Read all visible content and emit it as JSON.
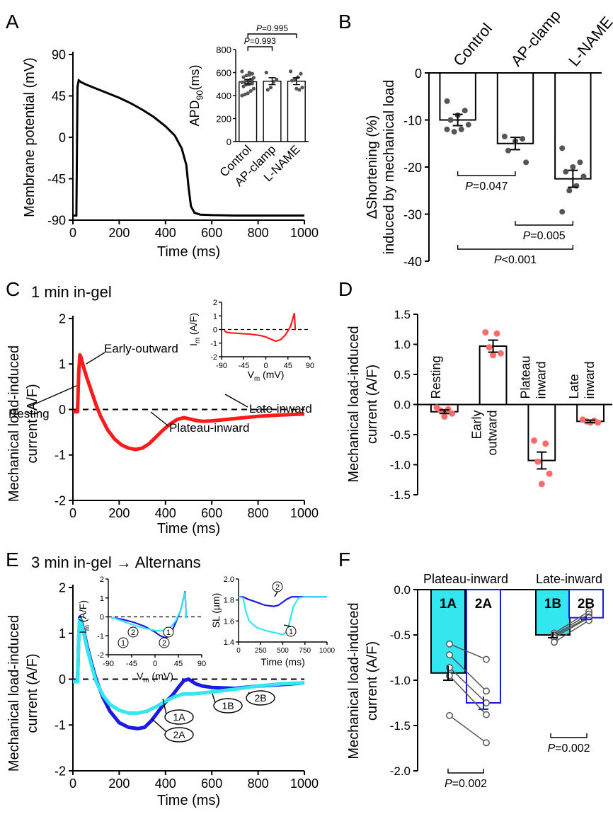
{
  "colors": {
    "black": "#000000",
    "red": "#ff1a1a",
    "lightred": "#ff6b6b",
    "cyan": "#33e6f0",
    "blue": "#1a1ae6",
    "grey": "#555555"
  },
  "panels": {
    "A": {
      "label": "A"
    },
    "B": {
      "label": "B"
    },
    "C": {
      "label": "C",
      "title": "1 min in-gel"
    },
    "D": {
      "label": "D"
    },
    "E": {
      "label": "E",
      "title": "3 min in-gel → Alternans"
    },
    "F": {
      "label": "F"
    }
  },
  "chart_data": [
    {
      "panel": "A",
      "type": "line",
      "xlabel": "Time (ms)",
      "ylabel": "Membrane potential (mV)",
      "xlim": [
        0,
        1000
      ],
      "ylim": [
        -90,
        90
      ],
      "xticks": [
        0,
        200,
        400,
        600,
        800,
        1000
      ],
      "yticks": [
        -90,
        -45,
        0,
        45,
        90
      ],
      "series": [
        {
          "x": [
            0,
            15,
            20,
            25,
            35,
            60,
            100,
            150,
            200,
            250,
            300,
            350,
            400,
            440,
            470,
            490,
            500,
            510,
            525,
            550,
            600,
            700,
            1000
          ],
          "y": [
            -85,
            -85,
            55,
            62,
            60,
            57,
            53,
            48,
            43,
            37,
            30,
            22,
            12,
            2,
            -12,
            -30,
            -55,
            -75,
            -82,
            -84,
            -84.5,
            -85,
            -85
          ]
        }
      ]
    },
    {
      "panel": "A-inset",
      "type": "bar",
      "ylabel": "APD",
      "ylabel_sub": "90",
      "ylabel_unit": "(ms)",
      "categories": [
        "Control",
        "AP-clamp",
        "L-NAME"
      ],
      "values": [
        520,
        525,
        525
      ],
      "errors": [
        20,
        30,
        30
      ],
      "ylim": [
        0,
        800
      ],
      "yticks": [
        0,
        200,
        400,
        600,
        800
      ],
      "points": [
        [
          610,
          590,
          580,
          575,
          560,
          555,
          540,
          530,
          520,
          515,
          505,
          500,
          495,
          480,
          460,
          440,
          420,
          410,
          400,
          540,
          600
        ],
        [
          600,
          540,
          520,
          470,
          450
        ],
        [
          610,
          590,
          560,
          540,
          530,
          470,
          450,
          460
        ]
      ],
      "comparisons": [
        {
          "from": 0,
          "to": 1,
          "label_p": "P",
          "label_val": "=0.993"
        },
        {
          "from": 0,
          "to": 2,
          "label_p": "P",
          "label_val": "=0.995"
        }
      ]
    },
    {
      "panel": "B",
      "type": "bar",
      "ylabel": "ΔShortening (%)",
      "ylabel2": "induced by mechanical load",
      "categories": [
        "Control",
        "AP-clamp",
        "L-NAME"
      ],
      "values": [
        -10,
        -15,
        -22.5
      ],
      "errors": [
        1.2,
        1.3,
        1.8
      ],
      "ylim": [
        -40,
        0
      ],
      "yticks": [
        0,
        -10,
        -20,
        -30,
        -40
      ],
      "points": [
        [
          -6,
          -8,
          -9,
          -10,
          -11,
          -12,
          -12.5,
          -12
        ],
        [
          -13.5,
          -14,
          -14.5,
          -16.5,
          -19
        ],
        [
          -16,
          -19,
          -20,
          -21,
          -22,
          -24,
          -25,
          -29.5
        ]
      ],
      "comparisons": [
        {
          "from": 0,
          "to": 1,
          "label_p": "P",
          "label_val": "=0.047"
        },
        {
          "from": 1,
          "to": 2,
          "label_p": "P",
          "label_val": "=0.005"
        },
        {
          "from": 0,
          "to": 2,
          "label_p": "P",
          "label_val": "<0.001"
        }
      ]
    },
    {
      "panel": "C",
      "type": "line",
      "xlabel": "Time (ms)",
      "ylabel": "Mechanical load-induced",
      "ylabel2": "current (A/F)",
      "xlim": [
        0,
        1000
      ],
      "ylim": [
        -2,
        2
      ],
      "xticks": [
        0,
        200,
        400,
        600,
        800,
        1000
      ],
      "yticks": [
        2,
        1,
        0,
        -1,
        -2
      ],
      "series": [
        {
          "x": [
            0,
            20,
            25,
            30,
            35,
            45,
            60,
            80,
            100,
            120,
            150,
            180,
            210,
            240,
            270,
            300,
            330,
            360,
            390,
            420,
            450,
            480,
            500,
            530,
            560,
            600,
            700,
            800,
            900,
            1000
          ],
          "y": [
            -0.05,
            -0.05,
            0.8,
            1.2,
            1.15,
            0.95,
            0.7,
            0.4,
            0.1,
            -0.15,
            -0.45,
            -0.65,
            -0.78,
            -0.85,
            -0.88,
            -0.85,
            -0.75,
            -0.6,
            -0.45,
            -0.32,
            -0.22,
            -0.18,
            -0.2,
            -0.24,
            -0.26,
            -0.25,
            -0.2,
            -0.15,
            -0.12,
            -0.1
          ]
        }
      ],
      "annotations": [
        "Early-outward",
        "Resting",
        "Plateau-inward",
        "Late-inward"
      ]
    },
    {
      "panel": "C-inset",
      "type": "line",
      "xlabel": "V",
      "xlabel_sub": "m",
      "xlabel_unit": " (mV)",
      "ylabel": "I",
      "ylabel_sub": "m",
      "ylabel_unit": " (A/F)",
      "xlim": [
        -90,
        90
      ],
      "ylim": [
        -2,
        2
      ],
      "xticks": [
        -90,
        -45,
        0,
        45,
        90
      ],
      "yticks": [
        2,
        1,
        0,
        -1,
        -2
      ],
      "series": [
        {
          "x": [
            -85,
            -80,
            -70,
            -50,
            -30,
            -10,
            0,
            10,
            20,
            30,
            40,
            50,
            55,
            58,
            60
          ],
          "y": [
            -0.05,
            -0.2,
            -0.25,
            -0.3,
            -0.35,
            -0.45,
            -0.55,
            -0.7,
            -0.85,
            -0.75,
            -0.4,
            0.2,
            0.8,
            1.2,
            -0.05
          ]
        }
      ]
    },
    {
      "panel": "D",
      "type": "bar",
      "ylabel": "Mechanical load-induced",
      "ylabel2": "current (A/F)",
      "categories": [
        "Resting",
        "Early outward",
        "Plateau inward",
        "Late inward"
      ],
      "category_lines": [
        [
          "Resting"
        ],
        [
          "Early",
          "outward"
        ],
        [
          "Plateau",
          "inward"
        ],
        [
          "Late",
          "inward"
        ]
      ],
      "values": [
        -0.12,
        0.97,
        -0.93,
        -0.28
      ],
      "errors": [
        0.03,
        0.1,
        0.14,
        0.02
      ],
      "ylim": [
        -1.5,
        1.5
      ],
      "yticks": [
        1.5,
        1.0,
        0.5,
        0.0,
        -0.5,
        -1.0,
        -1.5
      ],
      "points": [
        [
          -0.05,
          -0.08,
          -0.1,
          -0.15,
          -0.2
        ],
        [
          1.2,
          1.18,
          0.95,
          0.85,
          0.82
        ],
        [
          -0.6,
          -0.65,
          -0.95,
          -1.15,
          -1.32
        ],
        [
          -0.25,
          -0.27,
          -0.28,
          -0.3,
          -0.3
        ]
      ]
    },
    {
      "panel": "E",
      "type": "line",
      "xlabel": "Time (ms)",
      "ylabel": "Mechanical load-induced",
      "ylabel2": "current (A/F)",
      "xlim": [
        0,
        1000
      ],
      "ylim": [
        -2,
        2
      ],
      "xticks": [
        0,
        200,
        400,
        600,
        800,
        1000
      ],
      "yticks": [
        2,
        1,
        0,
        -1,
        -2
      ],
      "series": [
        {
          "name": "2",
          "color": "blue",
          "x": [
            0,
            20,
            25,
            30,
            40,
            60,
            80,
            100,
            130,
            160,
            200,
            240,
            280,
            310,
            340,
            370,
            400,
            430,
            460,
            480,
            500,
            530,
            560,
            600,
            700,
            800,
            900,
            1000
          ],
          "y": [
            -0.05,
            -0.05,
            0.9,
            1.35,
            1.2,
            0.75,
            0.35,
            0.0,
            -0.4,
            -0.7,
            -0.95,
            -1.05,
            -1.08,
            -1.05,
            -0.9,
            -0.7,
            -0.5,
            -0.35,
            -0.15,
            -0.03,
            0.0,
            -0.1,
            -0.15,
            -0.18,
            -0.2,
            -0.15,
            -0.12,
            -0.08
          ]
        },
        {
          "name": "1",
          "color": "cyan",
          "x": [
            0,
            20,
            25,
            30,
            40,
            60,
            80,
            100,
            130,
            160,
            200,
            240,
            280,
            320,
            360,
            400,
            440,
            480,
            520,
            560,
            600,
            700,
            800,
            900,
            1000
          ],
          "y": [
            -0.05,
            -0.05,
            0.9,
            1.3,
            1.15,
            0.7,
            0.3,
            -0.05,
            -0.35,
            -0.55,
            -0.68,
            -0.74,
            -0.74,
            -0.7,
            -0.6,
            -0.48,
            -0.38,
            -0.32,
            -0.32,
            -0.3,
            -0.28,
            -0.22,
            -0.15,
            -0.1,
            -0.08
          ]
        }
      ],
      "labels": [
        "1A",
        "2A",
        "1B",
        "2B"
      ]
    },
    {
      "panel": "E-inset1",
      "type": "line",
      "xlabel": "V",
      "xlabel_sub": "m",
      "xlabel_unit": " (mV)",
      "ylabel": "I",
      "ylabel_sub": "m",
      "ylabel_unit": " (A/F)",
      "xlim": [
        -90,
        90
      ],
      "ylim": [
        -2,
        2
      ],
      "xticks": [
        -90,
        -45,
        0,
        45,
        90
      ],
      "yticks": [
        2,
        1,
        0,
        -1,
        -2
      ],
      "series": [
        {
          "name": "2",
          "color": "blue",
          "x": [
            -85,
            -80,
            -60,
            -40,
            -20,
            0,
            10,
            20,
            25,
            30,
            40,
            50,
            55,
            58,
            60
          ],
          "y": [
            -0.05,
            -0.05,
            -0.15,
            -0.3,
            -0.5,
            -0.8,
            -1.0,
            -1.1,
            -1.05,
            -0.9,
            -0.3,
            0.4,
            1.0,
            1.35,
            -0.05
          ]
        },
        {
          "name": "1",
          "color": "cyan",
          "x": [
            -85,
            -80,
            -60,
            -40,
            -20,
            0,
            10,
            20,
            30,
            40,
            50,
            55,
            58,
            60
          ],
          "y": [
            -0.05,
            -0.05,
            -0.25,
            -0.45,
            -0.6,
            -0.72,
            -0.74,
            -0.72,
            -0.55,
            -0.2,
            0.4,
            1.0,
            1.3,
            -0.05
          ]
        }
      ],
      "labels": [
        "1",
        "2",
        "1",
        "2"
      ]
    },
    {
      "panel": "E-inset2",
      "type": "line",
      "xlabel": "Time (ms)",
      "ylabel": "SL (µm)",
      "xlim": [
        0,
        1000
      ],
      "ylim": [
        1.4,
        2.0
      ],
      "xticks": [
        0,
        250,
        500,
        750,
        1000
      ],
      "yticks": [
        2.0,
        1.8,
        1.6,
        1.4
      ],
      "series": [
        {
          "name": "2",
          "color": "blue",
          "x": [
            0,
            50,
            100,
            200,
            300,
            400,
            450,
            500,
            550,
            600,
            700,
            1000
          ],
          "y": [
            1.83,
            1.83,
            1.81,
            1.78,
            1.75,
            1.74,
            1.75,
            1.78,
            1.81,
            1.83,
            1.83,
            1.83
          ]
        },
        {
          "name": "1",
          "color": "cyan",
          "x": [
            0,
            50,
            80,
            120,
            200,
            300,
            400,
            500,
            550,
            580,
            620,
            680,
            750,
            1000
          ],
          "y": [
            1.83,
            1.82,
            1.7,
            1.6,
            1.54,
            1.51,
            1.49,
            1.47,
            1.5,
            1.6,
            1.74,
            1.82,
            1.83,
            1.83
          ]
        }
      ],
      "labels": [
        "2",
        "1"
      ]
    },
    {
      "panel": "F",
      "type": "bar",
      "ylabel": "Mechanical load-induced",
      "ylabel2": "current (A/F)",
      "groups": [
        "Plateau-inward",
        "Late-inward"
      ],
      "categories": [
        "1A",
        "2A",
        "1B",
        "2B"
      ],
      "values": [
        -0.92,
        -1.25,
        -0.5,
        -0.31
      ],
      "errors": [
        0.08,
        0.07,
        0.03,
        0.02
      ],
      "ylim": [
        -2.0,
        0.0
      ],
      "yticks": [
        0.0,
        -0.5,
        -1.0,
        -1.5,
        -2.0
      ],
      "pairs": [
        [
          [
            -0.6,
            -0.77
          ],
          [
            -0.72,
            -1.12
          ],
          [
            -0.86,
            -1.25
          ],
          [
            -0.95,
            -1.38
          ],
          [
            -1.39,
            -1.69
          ]
        ],
        [
          [
            -0.48,
            -0.24
          ],
          [
            -0.5,
            -0.27
          ],
          [
            -0.51,
            -0.3
          ],
          [
            -0.53,
            -0.31
          ],
          [
            -0.58,
            -0.34
          ]
        ]
      ],
      "comparisons": [
        {
          "from": 0,
          "to": 1,
          "label_p": "P",
          "label_val": "=0.002"
        },
        {
          "from": 2,
          "to": 3,
          "label_p": "P",
          "label_val": "=0.002"
        }
      ]
    }
  ]
}
